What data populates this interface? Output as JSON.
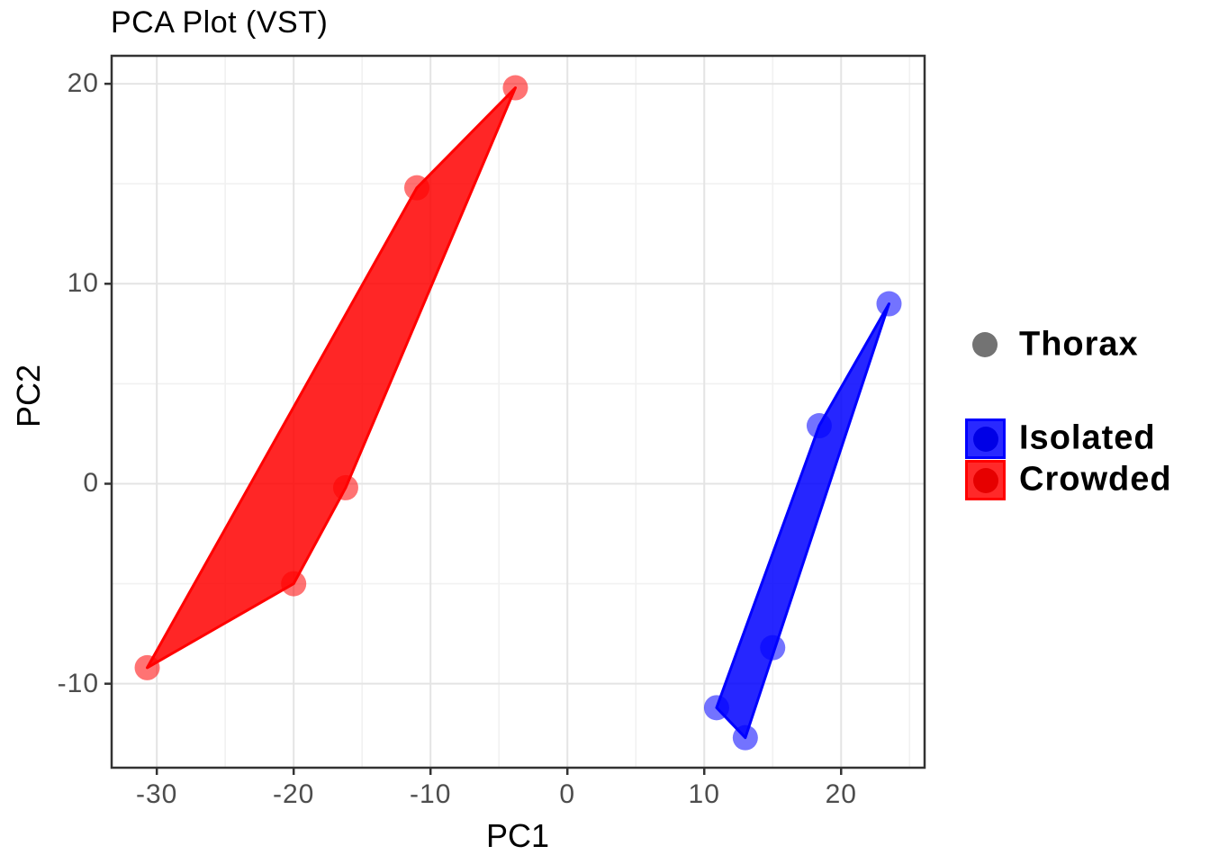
{
  "title": "PCA Plot (VST)",
  "axes": {
    "x_label": "PC1",
    "y_label": "PC2"
  },
  "legend": {
    "shape_entry": {
      "label": "Thorax",
      "color": "#737373"
    },
    "fill_entries": [
      {
        "label": "Isolated",
        "color": "#0000ff"
      },
      {
        "label": "Crowded",
        "color": "#ff0000"
      }
    ]
  },
  "chart_data": {
    "type": "scatter",
    "title": "PCA Plot (VST)",
    "xlabel": "PC1",
    "ylabel": "PC2",
    "xlim": [
      -33.3,
      26.1
    ],
    "ylim": [
      -14.2,
      21.4
    ],
    "x_ticks": [
      -30,
      -20,
      -10,
      0,
      10,
      20
    ],
    "x_minor_ticks": [
      -25,
      -15,
      -5,
      5,
      15,
      25
    ],
    "y_ticks": [
      20,
      10,
      0,
      -10
    ],
    "y_minor_ticks": [
      15,
      5,
      -5
    ],
    "grid": true,
    "legend_position": "right",
    "point_alpha": 0.55,
    "hull_fill_alpha": 0.85,
    "series": [
      {
        "name": "Crowded",
        "color": "#ff0000",
        "points": [
          [
            -3.8,
            19.8
          ],
          [
            -11.0,
            14.8
          ],
          [
            -16.2,
            -0.2
          ],
          [
            -20.0,
            -5.0
          ],
          [
            -30.7,
            -9.2
          ]
        ],
        "hull": [
          [
            -3.8,
            19.8
          ],
          [
            -11.0,
            14.8
          ],
          [
            -30.7,
            -9.2
          ],
          [
            -20.0,
            -5.0
          ],
          [
            -16.2,
            -0.2
          ]
        ]
      },
      {
        "name": "Isolated",
        "color": "#0000ff",
        "points": [
          [
            23.5,
            9.0
          ],
          [
            18.4,
            2.9
          ],
          [
            15.0,
            -8.2
          ],
          [
            10.9,
            -11.2
          ],
          [
            13.0,
            -12.7
          ]
        ],
        "hull": [
          [
            23.5,
            9.0
          ],
          [
            18.4,
            2.9
          ],
          [
            10.9,
            -11.2
          ],
          [
            13.0,
            -12.7
          ]
        ]
      }
    ]
  }
}
